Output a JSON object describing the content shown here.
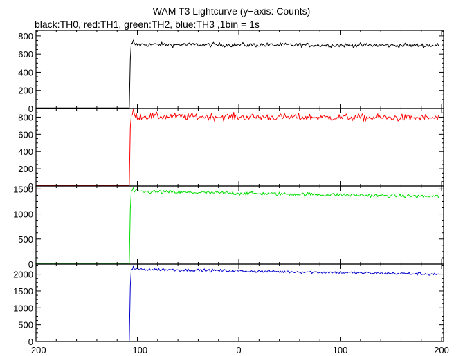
{
  "title": "WAM T3 Lightcurve (y−axis: Counts)",
  "subtitle": "black:TH0, red:TH1, green:TH2, blue:TH3 ,1bin = 1s",
  "chart_data": {
    "type": "line",
    "title": "WAM T3 Lightcurve (y−axis: Counts)",
    "subtitle": "black:TH0, red:TH1, green:TH2, blue:TH3 ,1bin = 1s",
    "xlabel": "",
    "ylabel": "",
    "xlim": [
      -200,
      202
    ],
    "x_ticks": [
      -200,
      -100,
      0,
      100,
      200
    ],
    "x_tick_labels": [
      "−200",
      "−100",
      "0",
      "100",
      "200"
    ],
    "x_step": 1,
    "panels": [
      {
        "name": "TH0",
        "color": "#000000",
        "ylim": [
          0,
          860
        ],
        "y_ticks": [
          0,
          200,
          400,
          600,
          800
        ],
        "pre_level": 5,
        "onset_x": -107,
        "onset_values": [
          540,
          720
        ],
        "post_level": 705,
        "post_noise": 22,
        "peak_note": "small spike near x=0 reaching ~750",
        "end_level": 695
      },
      {
        "name": "TH1",
        "color": "#ff0000",
        "ylim": [
          0,
          900
        ],
        "y_ticks": [
          0,
          200,
          400,
          600,
          800
        ],
        "pre_level": 5,
        "onset_x": -107,
        "onset_values": [
          680,
          820
        ],
        "post_level": 810,
        "post_noise": 38,
        "end_level": 790
      },
      {
        "name": "TH2",
        "color": "#00dd00",
        "ylim": [
          0,
          1560
        ],
        "y_ticks": [
          0,
          500,
          1000,
          1500
        ],
        "pre_level": 5,
        "onset_x": -107,
        "onset_values": [
          1100,
          1450
        ],
        "post_level": 1450,
        "post_noise": 35,
        "end_level": 1350
      },
      {
        "name": "TH3",
        "color": "#0000cc",
        "ylim": [
          0,
          2300
        ],
        "y_ticks": [
          0,
          500,
          1000,
          1500,
          2000
        ],
        "pre_level": 5,
        "onset_x": -107,
        "onset_values": [
          1650,
          2150
        ],
        "post_level": 2150,
        "post_noise": 40,
        "end_level": 2000
      }
    ]
  }
}
